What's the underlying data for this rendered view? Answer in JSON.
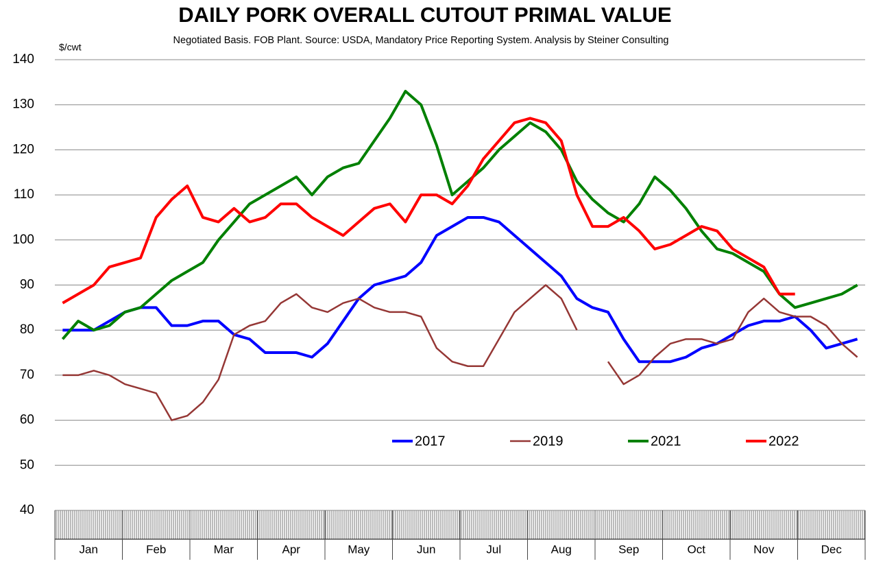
{
  "chart_data": {
    "type": "line",
    "title": "DAILY PORK OVERALL CUTOUT PRIMAL VALUE",
    "subtitle": "Negotiated Basis.  FOB Plant.  Source: USDA, Mandatory Price Reporting System.  Analysis by Steiner Consulting",
    "y_label": "$/cwt",
    "month_labels": [
      "Jan",
      "Feb",
      "Mar",
      "Apr",
      "May",
      "Jun",
      "Jul",
      "Aug",
      "Sep",
      "Oct",
      "Nov",
      "Dec"
    ],
    "x": [
      1,
      2,
      3,
      4,
      5,
      6,
      7,
      8,
      9,
      10,
      11,
      12,
      13,
      14,
      15,
      16,
      17,
      18,
      19,
      20,
      21,
      22,
      23,
      24,
      25,
      26,
      27,
      28,
      29,
      30,
      31,
      32,
      33,
      34,
      35,
      36,
      37,
      38,
      39,
      40,
      41,
      42,
      43,
      44,
      45,
      46,
      47,
      48,
      49,
      50,
      51,
      52
    ],
    "xlim": [
      0.5,
      52.5
    ],
    "ylim": [
      40,
      140
    ],
    "yticks": [
      40,
      50,
      60,
      70,
      80,
      90,
      100,
      110,
      120,
      130,
      140
    ],
    "grid": true,
    "series": [
      {
        "name": "2017",
        "color": "#0000ff",
        "values": [
          80,
          80,
          80,
          82,
          84,
          85,
          85,
          81,
          81,
          82,
          82,
          79,
          78,
          75,
          75,
          75,
          74,
          77,
          82,
          87,
          90,
          91,
          92,
          95,
          101,
          103,
          105,
          105,
          104,
          101,
          98,
          95,
          92,
          87,
          85,
          84,
          78,
          73,
          73,
          73,
          74,
          76,
          77,
          79,
          81,
          82,
          82,
          83,
          80,
          76,
          77,
          78
        ]
      },
      {
        "name": "2019",
        "color": "#953735",
        "values": [
          70,
          70,
          71,
          70,
          68,
          67,
          66,
          60,
          61,
          64,
          69,
          79,
          81,
          82,
          86,
          88,
          85,
          84,
          86,
          87,
          85,
          84,
          84,
          83,
          76,
          73,
          72,
          72,
          78,
          84,
          87,
          90,
          87,
          80,
          null,
          73,
          68,
          70,
          74,
          77,
          78,
          78,
          77,
          78,
          84,
          87,
          84,
          83,
          83,
          81,
          77,
          74
        ]
      },
      {
        "name": "2021",
        "color": "#008000",
        "values": [
          78,
          82,
          80,
          81,
          84,
          85,
          88,
          91,
          93,
          95,
          100,
          104,
          108,
          110,
          112,
          114,
          110,
          114,
          116,
          117,
          122,
          127,
          133,
          130,
          121,
          110,
          113,
          116,
          120,
          123,
          126,
          124,
          120,
          113,
          109,
          106,
          104,
          108,
          114,
          111,
          107,
          102,
          98,
          97,
          95,
          93,
          88,
          85,
          86,
          87,
          88,
          90
        ]
      },
      {
        "name": "2022",
        "color": "#ff0000",
        "values": [
          86,
          88,
          90,
          94,
          95,
          96,
          105,
          109,
          112,
          105,
          104,
          107,
          104,
          105,
          108,
          108,
          105,
          103,
          101,
          104,
          107,
          108,
          104,
          110,
          110,
          108,
          112,
          118,
          122,
          126,
          127,
          126,
          122,
          110,
          103,
          103,
          105,
          102,
          98,
          99,
          101,
          103,
          102,
          98,
          96,
          94,
          88,
          88,
          null,
          null,
          null,
          null
        ]
      }
    ]
  }
}
